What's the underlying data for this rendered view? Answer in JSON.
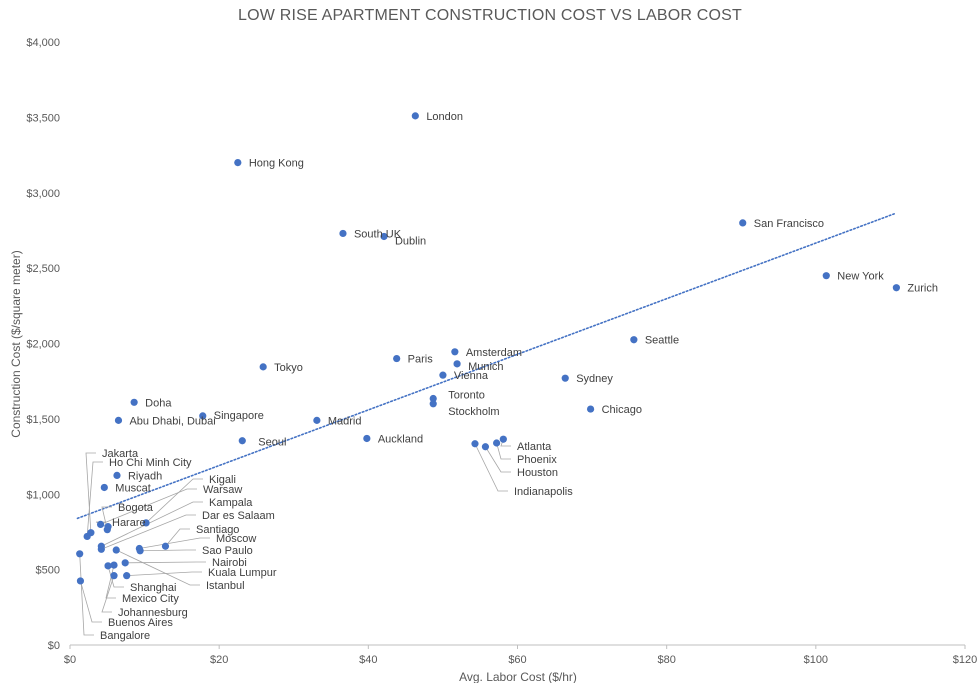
{
  "chart_data": {
    "type": "scatter",
    "title": "LOW RISE APARTMENT CONSTRUCTION COST VS LABOR COST",
    "xlabel": "Avg. Labor Cost ($/hr)",
    "ylabel": "Construction Cost ($/square meter)",
    "xlim": [
      0,
      120
    ],
    "ylim": [
      0,
      4000
    ],
    "x_ticks": [
      0,
      20,
      40,
      60,
      80,
      100,
      120
    ],
    "x_tick_labels": [
      "$0",
      "$20",
      "$40",
      "$60",
      "$80",
      "$100",
      "$120"
    ],
    "y_ticks": [
      0,
      500,
      1000,
      1500,
      2000,
      2500,
      3000,
      3500,
      4000
    ],
    "y_tick_labels": [
      "$0",
      "$500",
      "$1,000",
      "$1,500",
      "$2,000",
      "$2,500",
      "$3,000",
      "$3,500",
      "$4,000"
    ],
    "grid": false,
    "legend": "none",
    "marker_color": "#4472C4",
    "trendline": {
      "type": "linear",
      "style": "dotted",
      "color": "#4472C4",
      "x": [
        1,
        110.5
      ],
      "y": [
        840,
        2860
      ]
    },
    "points": [
      {
        "label": "London",
        "x": 46.3,
        "y": 3510
      },
      {
        "label": "Hong Kong",
        "x": 22.5,
        "y": 3200
      },
      {
        "label": "San Francisco",
        "x": 90.2,
        "y": 2800
      },
      {
        "label": "South UK",
        "x": 36.6,
        "y": 2730
      },
      {
        "label": "Dublin",
        "x": 42.1,
        "y": 2710
      },
      {
        "label": "New York",
        "x": 101.4,
        "y": 2450
      },
      {
        "label": "Zurich",
        "x": 110.8,
        "y": 2370
      },
      {
        "label": "Seattle",
        "x": 75.6,
        "y": 2025
      },
      {
        "label": "Amsterdam",
        "x": 51.6,
        "y": 1945
      },
      {
        "label": "Paris",
        "x": 43.8,
        "y": 1900
      },
      {
        "label": "Munich",
        "x": 51.9,
        "y": 1865
      },
      {
        "label": "Tokyo",
        "x": 25.9,
        "y": 1845
      },
      {
        "label": "Vienna",
        "x": 50.0,
        "y": 1790
      },
      {
        "label": "Sydney",
        "x": 66.4,
        "y": 1770
      },
      {
        "label": "Toronto",
        "x": 48.7,
        "y": 1635
      },
      {
        "label": "Doha",
        "x": 8.6,
        "y": 1610
      },
      {
        "label": "Stockholm",
        "x": 48.7,
        "y": 1600
      },
      {
        "label": "Chicago",
        "x": 69.8,
        "y": 1565
      },
      {
        "label": "Singapore",
        "x": 17.8,
        "y": 1520
      },
      {
        "label": "Abu Dhabi, Dubai",
        "x": 6.5,
        "y": 1490
      },
      {
        "label": "Madrid",
        "x": 33.1,
        "y": 1490
      },
      {
        "label": "Auckland",
        "x": 39.8,
        "y": 1370
      },
      {
        "label": "Seoul",
        "x": 23.1,
        "y": 1355
      },
      {
        "label": "Atlanta",
        "x": 58.1,
        "y": 1365
      },
      {
        "label": "Phoenix",
        "x": 57.2,
        "y": 1340
      },
      {
        "label": "Indianapolis",
        "x": 54.3,
        "y": 1335
      },
      {
        "label": "Houston",
        "x": 55.7,
        "y": 1315
      },
      {
        "label": "Riyadh",
        "x": 6.3,
        "y": 1125
      },
      {
        "label": "Muscat",
        "x": 4.6,
        "y": 1045
      },
      {
        "label": "Kigali",
        "x": 10.2,
        "y": 810
      },
      {
        "label": "Warsaw",
        "x": 4.1,
        "y": 800
      },
      {
        "label": "Harare",
        "x": 5.1,
        "y": 785
      },
      {
        "label": "Bogota",
        "x": 5.0,
        "y": 765
      },
      {
        "label": "Jakarta",
        "x": 2.8,
        "y": 745
      },
      {
        "label": "Ho Chi Minh City",
        "x": 2.3,
        "y": 720
      },
      {
        "label": "Kampala",
        "x": 4.2,
        "y": 655
      },
      {
        "label": "Santiago",
        "x": 12.8,
        "y": 655
      },
      {
        "label": "Dar es Salaam",
        "x": 4.2,
        "y": 635
      },
      {
        "label": "Moscow",
        "x": 9.3,
        "y": 640
      },
      {
        "label": "Sao Paulo",
        "x": 9.4,
        "y": 625
      },
      {
        "label": "Istanbul",
        "x": 6.2,
        "y": 630
      },
      {
        "label": "Bangalore",
        "x": 1.3,
        "y": 605
      },
      {
        "label": "Nairobi",
        "x": 7.4,
        "y": 545
      },
      {
        "label": "Shanghai",
        "x": 5.1,
        "y": 525
      },
      {
        "label": "Mexico City",
        "x": 5.9,
        "y": 530
      },
      {
        "label": "Kuala Lumpur",
        "x": 7.6,
        "y": 460
      },
      {
        "label": "Johannesburg",
        "x": 5.9,
        "y": 460
      },
      {
        "label": "Buenos Aires",
        "x": 1.4,
        "y": 425
      }
    ]
  },
  "colors": {
    "marker": "#4472C4",
    "text": "#595959",
    "axis": "#BFBFBF",
    "leader": "#A6A6A6"
  }
}
